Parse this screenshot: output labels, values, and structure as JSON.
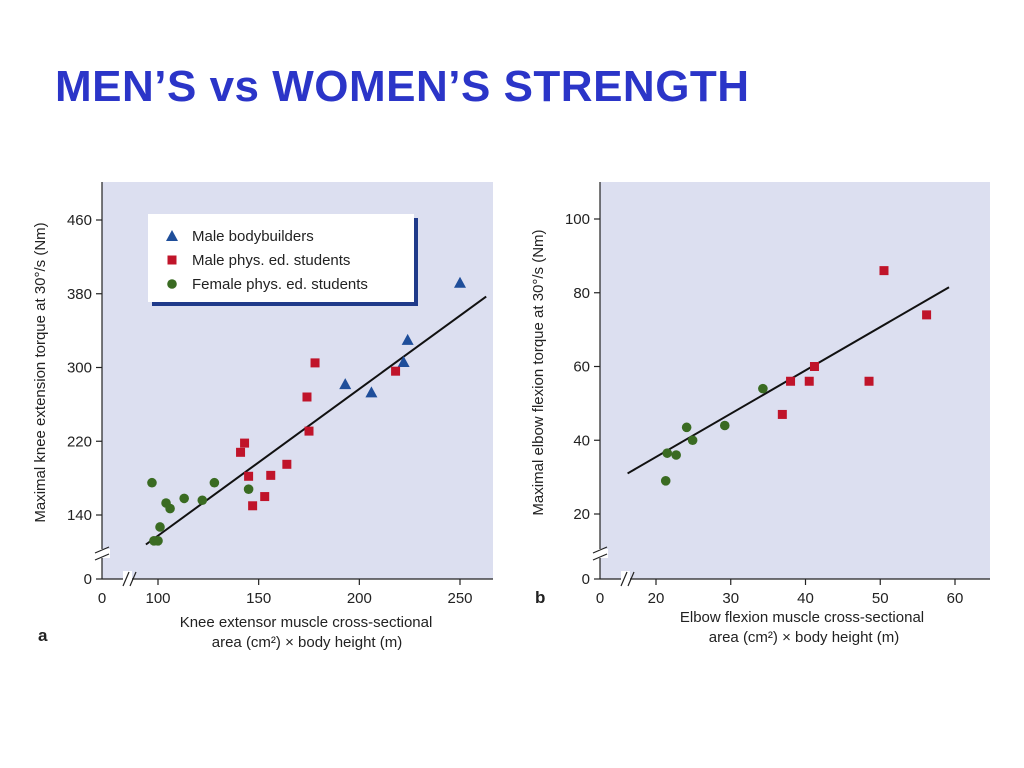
{
  "slide_title": "MEN’S vs WOMEN’S STRENGTH",
  "colors": {
    "title": "#2b35c8",
    "plot_bg": "#dcdff0",
    "male_bodybuilders": "#1f4e9a",
    "male_students": "#c0142a",
    "female_students": "#3a6b22"
  },
  "chart_data": [
    {
      "type": "scatter",
      "panel_label": "a",
      "xlabel_line1": "Knee extensor muscle cross-sectional",
      "xlabel_line2": "area (cm²) × body height (m)",
      "ylabel": "Maximal knee extension torque at 30°/s (Nm)",
      "x_ticks": [
        0,
        100,
        150,
        200,
        250
      ],
      "y_ticks": [
        0,
        140,
        220,
        300,
        380,
        460
      ],
      "x_break": true,
      "y_break": true,
      "legend": {
        "position": "top-left",
        "entries": [
          "Male bodybuilders",
          "Male phys. ed. students",
          "Female phys. ed. students"
        ]
      },
      "series": [
        {
          "name": "Male bodybuilders",
          "marker": "triangle",
          "points": [
            [
              193,
              282
            ],
            [
              206,
              273
            ],
            [
              222,
              306
            ],
            [
              224,
              330
            ],
            [
              250,
              392
            ]
          ]
        },
        {
          "name": "Male phys. ed. students",
          "marker": "square",
          "points": [
            [
              141,
              208
            ],
            [
              143,
              218
            ],
            [
              145,
              182
            ],
            [
              147,
              150
            ],
            [
              153,
              160
            ],
            [
              156,
              183
            ],
            [
              164,
              195
            ],
            [
              174,
              268
            ],
            [
              175,
              231
            ],
            [
              178,
              305
            ],
            [
              218,
              296
            ]
          ]
        },
        {
          "name": "Female phys. ed. students",
          "marker": "circle",
          "points": [
            [
              97,
              175
            ],
            [
              98,
              112
            ],
            [
              100,
              112
            ],
            [
              101,
              127
            ],
            [
              104,
              153
            ],
            [
              106,
              147
            ],
            [
              113,
              158
            ],
            [
              122,
              156
            ],
            [
              128,
              175
            ],
            [
              145,
              168
            ]
          ]
        }
      ],
      "fit_line": [
        [
          94,
          108
        ],
        [
          263,
          377
        ]
      ]
    },
    {
      "type": "scatter",
      "panel_label": "b",
      "xlabel_line1": "Elbow flexion muscle cross-sectional",
      "xlabel_line2": "area (cm²) × body height (m)",
      "ylabel": "Maximal elbow flexion torque at 30°/s (Nm)",
      "x_ticks": [
        0,
        20,
        30,
        40,
        50,
        60
      ],
      "y_ticks": [
        0,
        20,
        40,
        60,
        80,
        100
      ],
      "x_break": true,
      "y_break": true,
      "series": [
        {
          "name": "Male phys. ed. students",
          "marker": "square",
          "points": [
            [
              36.9,
              47
            ],
            [
              38,
              56
            ],
            [
              40.5,
              56
            ],
            [
              41.2,
              60
            ],
            [
              48.5,
              56
            ],
            [
              50.5,
              86
            ],
            [
              56.2,
              74
            ]
          ]
        },
        {
          "name": "Female phys. ed. students",
          "marker": "circle",
          "points": [
            [
              21.3,
              29
            ],
            [
              21.5,
              36.5
            ],
            [
              22.7,
              36
            ],
            [
              24.1,
              43.5
            ],
            [
              24.9,
              40
            ],
            [
              29.2,
              44
            ],
            [
              34.3,
              54
            ]
          ]
        }
      ],
      "fit_line": [
        [
          16.2,
          31
        ],
        [
          59.2,
          81.5
        ]
      ]
    }
  ]
}
